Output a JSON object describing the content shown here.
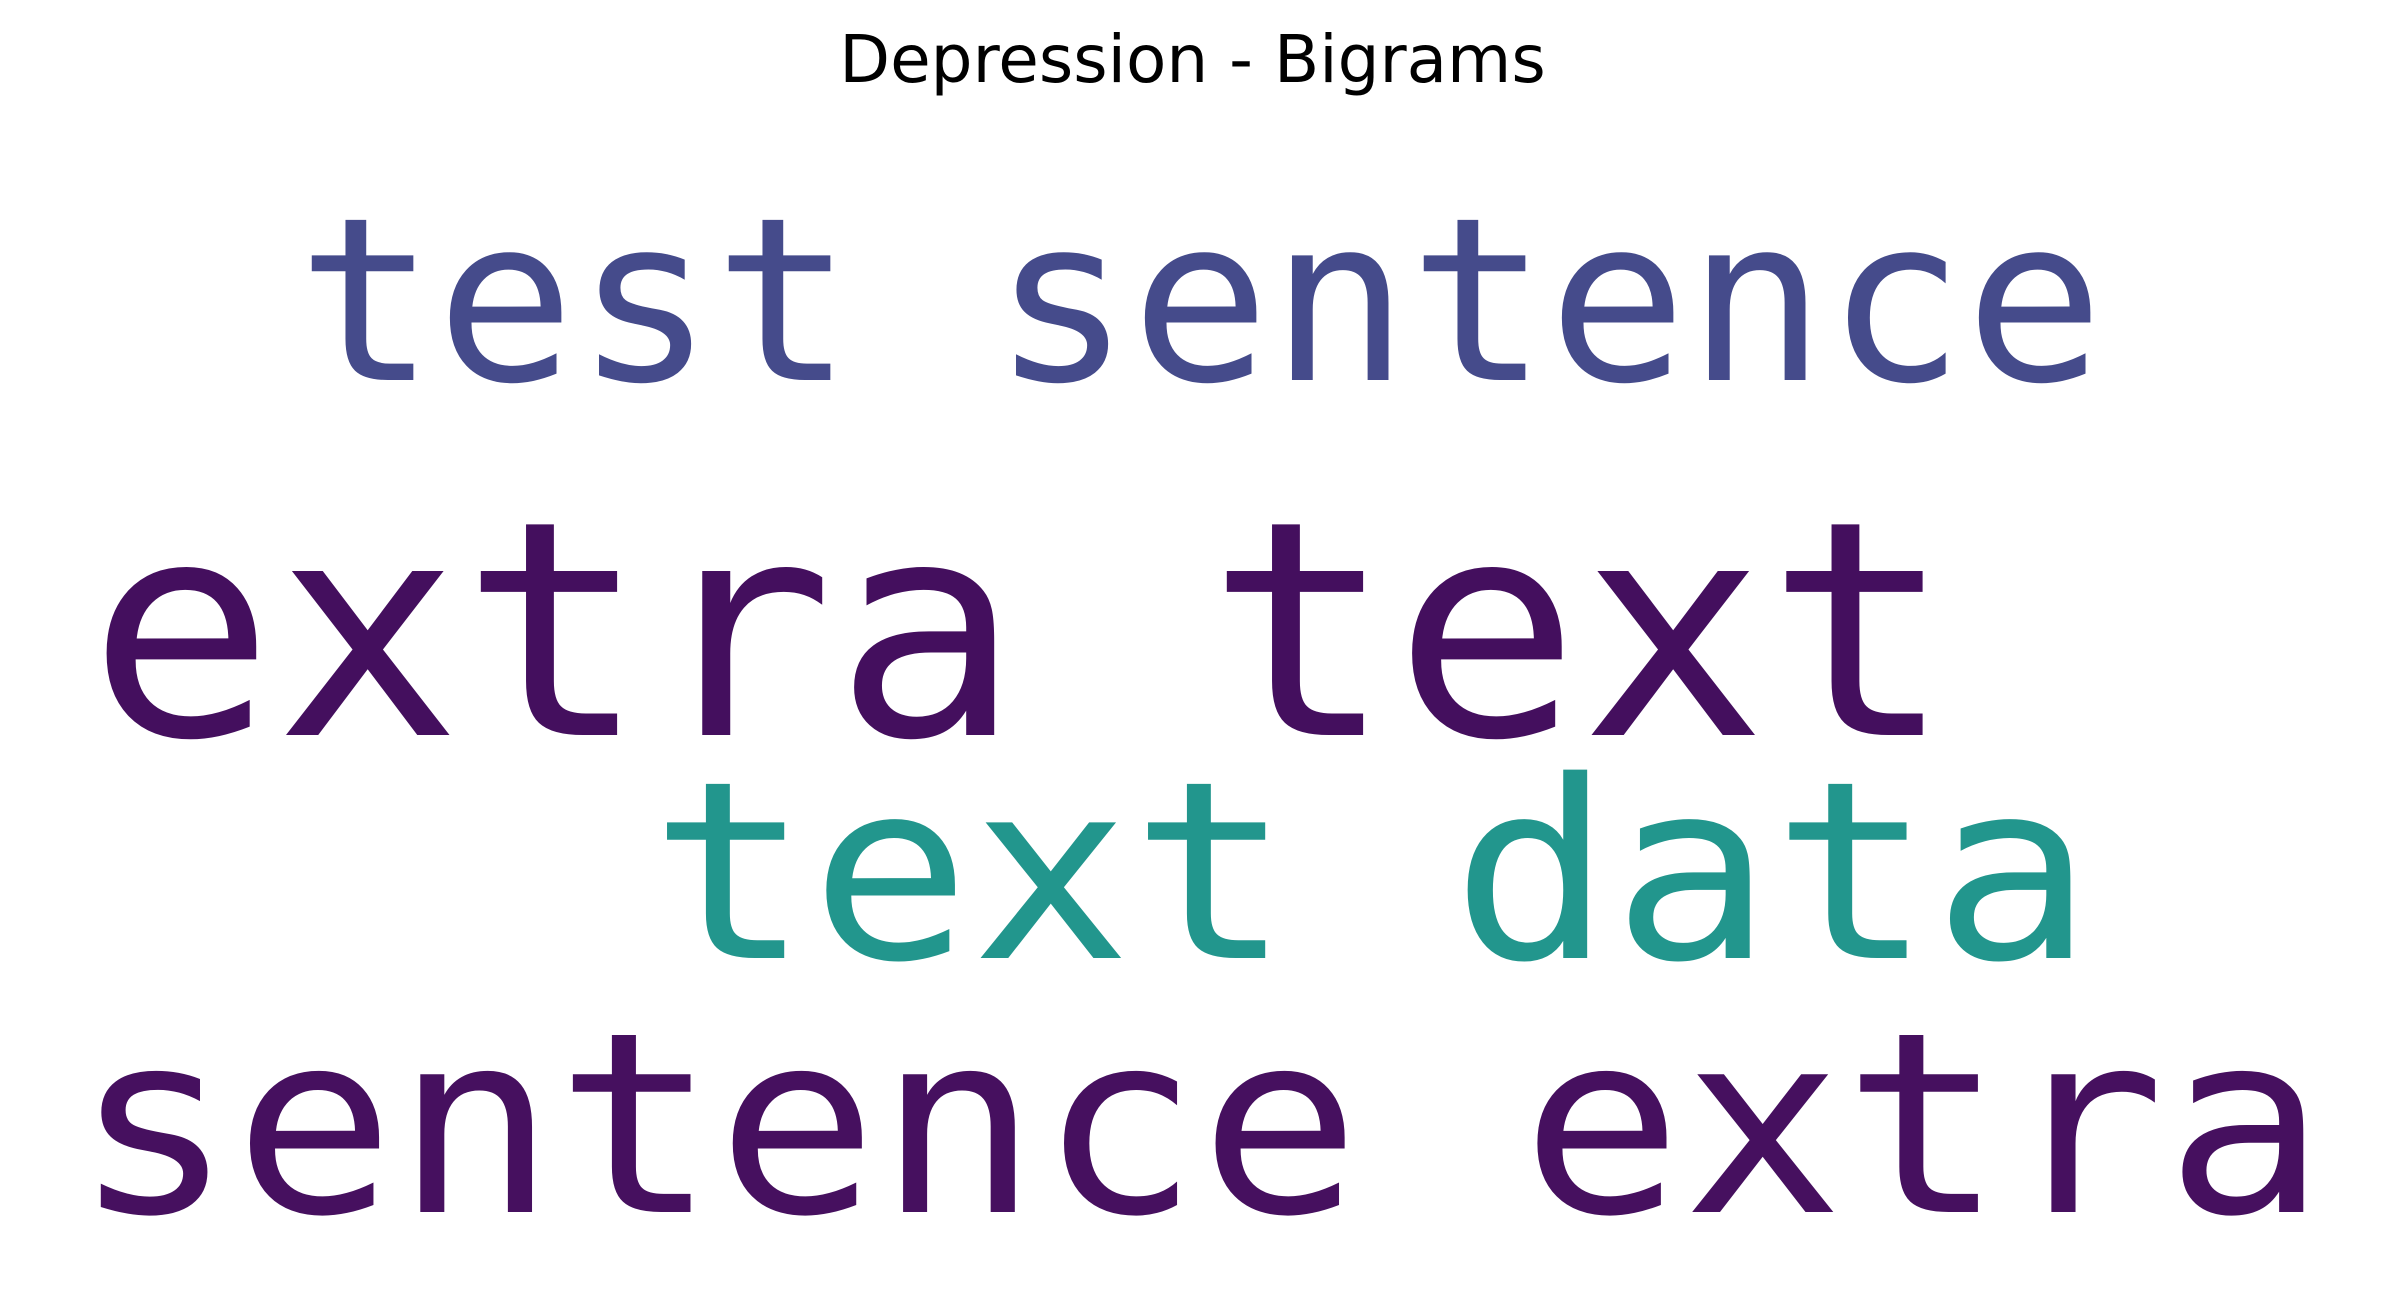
{
  "chart_data": {
    "type": "wordcloud",
    "title": "Depression - Bigrams",
    "words": [
      {
        "text": "extra text",
        "color": "#440f5e"
      },
      {
        "text": "sentence extra",
        "color": "#46105f"
      },
      {
        "text": "test sentence",
        "color": "#454b8b"
      },
      {
        "text": "text data",
        "color": "#22968d"
      }
    ]
  }
}
